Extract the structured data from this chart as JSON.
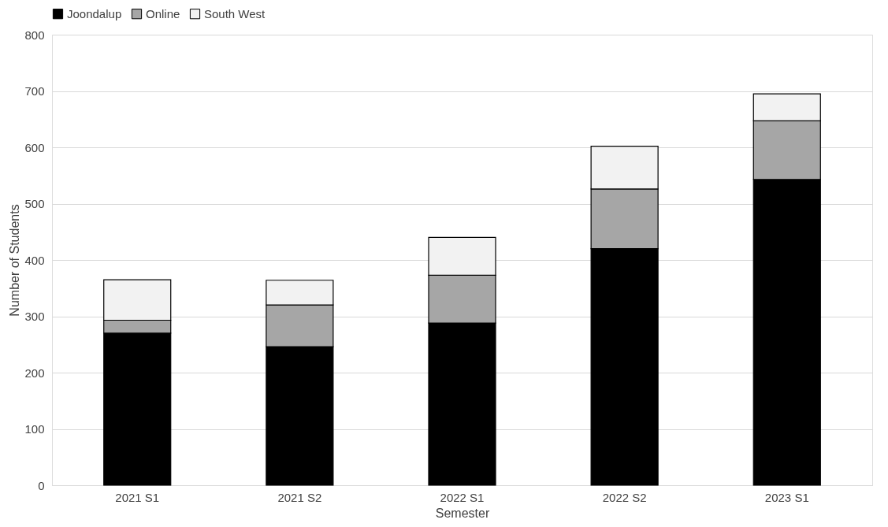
{
  "chart_data": {
    "type": "bar",
    "stacked": true,
    "xlabel": "Semester",
    "ylabel": "Number of Students",
    "categories": [
      "2021 S1",
      "2021 S2",
      "2022 S1",
      "2022 S2",
      "2023 S1"
    ],
    "series": [
      {
        "name": "Joondalup",
        "color": "#000000",
        "values": [
          270,
          246,
          288,
          420,
          543
        ]
      },
      {
        "name": "Online",
        "color": "#a6a6a6",
        "values": [
          23,
          74,
          85,
          106,
          104
        ]
      },
      {
        "name": "South West",
        "color": "#f2f2f2",
        "values": [
          72,
          44,
          67,
          76,
          48
        ]
      }
    ],
    "ylim": [
      0,
      800
    ],
    "yticks": [
      0,
      100,
      200,
      300,
      400,
      500,
      600,
      700,
      800
    ],
    "grid": "y",
    "legend": "top"
  }
}
